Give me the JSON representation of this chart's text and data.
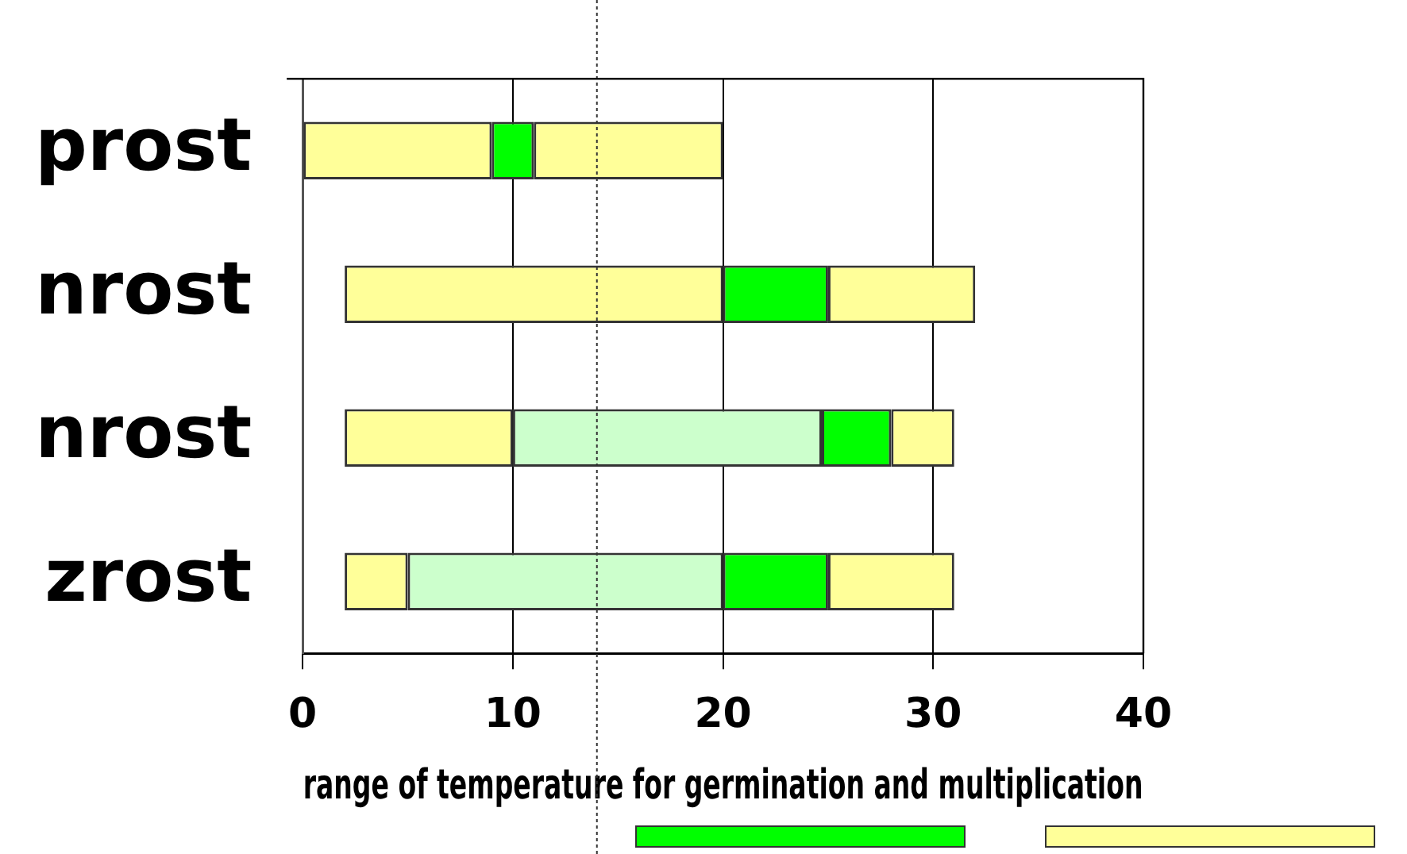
{
  "chart_data": {
    "type": "bar",
    "orientation": "horizontal",
    "xlabel": "range of temperature for germination and multiplication",
    "categories": [
      "prost",
      "nrost",
      "nrost",
      "zrost"
    ],
    "series": [
      {
        "color": "#ffff99",
        "base": [
          0,
          2,
          2,
          2
        ],
        "values": [
          9,
          18,
          8,
          3
        ]
      },
      {
        "color": "#ccffcc",
        "base": [
          null,
          null,
          10,
          5
        ],
        "values": [
          null,
          null,
          14.7,
          15
        ]
      },
      {
        "color": "#00ff00",
        "base": [
          9,
          20,
          24.7,
          20
        ],
        "values": [
          2,
          5,
          3.3,
          5
        ]
      },
      {
        "color": "#ffff99",
        "base": [
          11,
          25,
          28,
          25
        ],
        "values": [
          9,
          7,
          3,
          6
        ]
      }
    ],
    "xlim": [
      0,
      40
    ],
    "xticks": [
      0,
      10,
      20,
      30,
      40
    ],
    "grid": "x",
    "ref_lines": [
      {
        "axis": "x",
        "value": 14,
        "line_style": "dotted"
      }
    ]
  }
}
